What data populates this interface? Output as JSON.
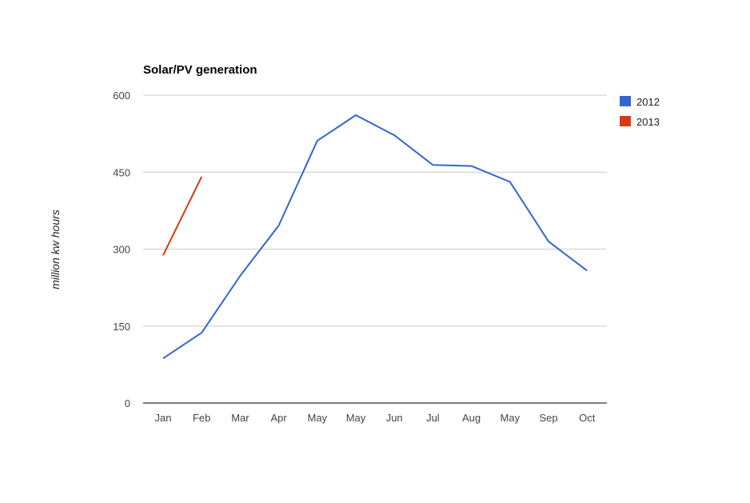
{
  "chart_data": {
    "type": "line",
    "title": "Solar/PV generation",
    "xlabel": "",
    "ylabel": "million kw hours",
    "categories": [
      "Jan",
      "Feb",
      "Mar",
      "Apr",
      "May",
      "May",
      "Jun",
      "Jul",
      "Aug",
      "May",
      "Sep",
      "Oct"
    ],
    "ylim": [
      0,
      600
    ],
    "yticks": [
      0,
      150,
      300,
      450,
      600
    ],
    "grid": true,
    "legend_position": "right",
    "series": [
      {
        "name": "2012",
        "color": "#3366cc",
        "values": [
          87,
          137,
          248,
          346,
          511,
          561,
          522,
          464,
          462,
          431,
          315,
          258
        ]
      },
      {
        "name": "2013",
        "color": "#dc3912",
        "values": [
          288,
          441,
          null,
          null,
          null,
          null,
          null,
          null,
          null,
          null,
          null,
          null
        ]
      }
    ]
  }
}
